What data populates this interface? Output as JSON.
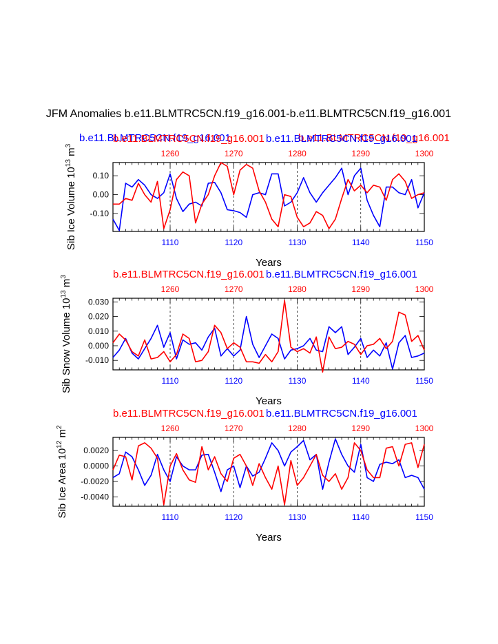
{
  "page": {
    "title": "JFM Anomalies b.e11.BLMTRC5CN.f19_g16.001-b.e11.BLMTRC5CN.f19_g16.001",
    "colors": {
      "series_a": "#ff0000",
      "series_b": "#0000ff",
      "axis": "#000000"
    }
  },
  "chart_data": [
    {
      "type": "line",
      "ylabel": "Sib Ice Volume 10^13 m^3",
      "ylabel_main": "Sib Ice Volume 10",
      "ylabel_exp": "13",
      "ylabel_unit": "m",
      "ylabel_unit_exp": "3",
      "xlabel": "Years",
      "top_label_red": "b.e11.BLMTRC5CN.f19_g16.001",
      "top_label_blue": "b.e11.BLMTRC5CN.f19_g16.001",
      "header_extra_blue": "b.e11.BLMTRC5CN.f19_g16.001",
      "header_extra_red": "b.e11.BLMTRC5CN.f19_g16.001",
      "ylim": [
        -0.195,
        0.17
      ],
      "yticks": [
        0.1,
        0.0,
        -0.1
      ],
      "ytick_labels": [
        "0.10",
        "0.00",
        "-0.10"
      ],
      "bottom_axis": {
        "range": [
          1101,
          1150
        ],
        "ticks": [
          1110,
          1120,
          1130,
          1140,
          1150
        ],
        "color": "#0000ff"
      },
      "top_axis": {
        "range": [
          1251,
          1300
        ],
        "ticks": [
          1260,
          1270,
          1280,
          1290,
          1300
        ],
        "color": "#ff0000"
      },
      "series": [
        {
          "name": "b.e11.BLMTRC5CN.f19_g16.001",
          "color": "#0000ff",
          "values": [
            -0.13,
            -0.19,
            0.06,
            0.04,
            0.08,
            0.05,
            0.0,
            -0.02,
            0.01,
            0.11,
            -0.02,
            -0.09,
            -0.05,
            -0.04,
            -0.06,
            0.06,
            0.065,
            0.01,
            -0.08,
            -0.085,
            -0.095,
            -0.12,
            0.0,
            0.01,
            0.0,
            0.11,
            0.11,
            -0.06,
            -0.04,
            0.01,
            0.09,
            0.01,
            -0.04,
            0.01,
            0.05,
            0.09,
            0.14,
            0.0,
            0.1,
            0.14,
            -0.03,
            -0.11,
            -0.17,
            0.04,
            0.04,
            0.01,
            0.0,
            0.08,
            -0.07,
            0.01
          ]
        },
        {
          "name": "b.e11.BLMTRC5CN.f19_g16.001",
          "color": "#ff0000",
          "values": [
            -0.05,
            -0.05,
            -0.02,
            -0.03,
            0.06,
            0.0,
            -0.04,
            0.07,
            -0.18,
            -0.08,
            0.08,
            0.12,
            0.1,
            -0.15,
            -0.05,
            0.0,
            0.1,
            0.17,
            0.15,
            0.0,
            0.13,
            0.16,
            0.14,
            0.02,
            -0.04,
            -0.13,
            -0.17,
            0.0,
            -0.01,
            -0.12,
            -0.17,
            -0.15,
            -0.09,
            -0.11,
            -0.18,
            -0.13,
            -0.02,
            0.08,
            0.02,
            0.05,
            0.01,
            0.05,
            0.04,
            -0.03,
            0.08,
            0.11,
            0.07,
            -0.02,
            0.0,
            0.01
          ]
        }
      ]
    },
    {
      "type": "line",
      "ylabel": "Sib Snow Volume 10^13 m^3",
      "ylabel_main": "Sib Snow Volume 10",
      "ylabel_exp": "13",
      "ylabel_unit": "m",
      "ylabel_unit_exp": "3",
      "xlabel": "Years",
      "top_label_red": "b.e11.BLMTRC5CN.f19_g16.001",
      "top_label_blue": "b.e11.BLMTRC5CN.f19_g16.001",
      "ylim": [
        -0.0165,
        0.0325
      ],
      "yticks": [
        0.03,
        0.02,
        0.01,
        0.0,
        -0.01
      ],
      "ytick_labels": [
        "0.030",
        "0.020",
        "0.010",
        "0.000",
        "-0.010"
      ],
      "bottom_axis": {
        "range": [
          1101,
          1150
        ],
        "ticks": [
          1110,
          1120,
          1130,
          1140,
          1150
        ],
        "color": "#0000ff"
      },
      "top_axis": {
        "range": [
          1251,
          1300
        ],
        "ticks": [
          1260,
          1270,
          1280,
          1290,
          1300
        ],
        "color": "#ff0000"
      },
      "series": [
        {
          "name": "b.e11.BLMTRC5CN.f19_g16.001",
          "color": "#0000ff",
          "values": [
            -0.008,
            -0.003,
            0.005,
            -0.005,
            -0.009,
            -0.002,
            0.005,
            0.014,
            -0.001,
            0.009,
            -0.009,
            0.004,
            0.001,
            0.002,
            -0.003,
            0.006,
            0.012,
            -0.007,
            -0.002,
            -0.007,
            -0.003,
            0.02,
            0.001,
            -0.008,
            0.0,
            0.008,
            0.005,
            -0.009,
            -0.003,
            -0.002,
            0.0,
            0.005,
            -0.003,
            -0.004,
            0.013,
            0.009,
            0.013,
            -0.006,
            -0.001,
            0.005,
            -0.008,
            -0.003,
            -0.007,
            0.002,
            -0.016,
            0.002,
            0.007,
            -0.008,
            -0.007,
            -0.005
          ]
        },
        {
          "name": "b.e11.BLMTRC5CN.f19_g16.001",
          "color": "#ff0000",
          "values": [
            0.002,
            0.008,
            0.004,
            -0.004,
            -0.007,
            0.004,
            -0.009,
            -0.008,
            -0.004,
            -0.011,
            -0.006,
            0.008,
            0.005,
            -0.011,
            -0.01,
            -0.004,
            0.014,
            0.009,
            -0.002,
            0.002,
            -0.001,
            -0.011,
            -0.011,
            -0.012,
            -0.006,
            -0.011,
            -0.004,
            0.031,
            -0.001,
            -0.004,
            -0.002,
            -0.005,
            0.006,
            -0.018,
            0.006,
            -0.002,
            -0.001,
            0.003,
            0.001,
            -0.006,
            0.0,
            0.001,
            0.005,
            -0.002,
            0.003,
            0.023,
            0.021,
            0.003,
            0.007,
            -0.003
          ]
        }
      ]
    },
    {
      "type": "line",
      "ylabel": "Sib Ice Area 10^12 m^2",
      "ylabel_main": "Sib Ice Area 10",
      "ylabel_exp": "12",
      "ylabel_unit": "m",
      "ylabel_unit_exp": "2",
      "xlabel": "Years",
      "top_label_red": "b.e11.BLMTRC5CN.f19_g16.001",
      "top_label_blue": "b.e11.BLMTRC5CN.f19_g16.001",
      "ylim": [
        -0.0052,
        0.0037
      ],
      "yticks": [
        0.002,
        0.0,
        -0.002,
        -0.004
      ],
      "ytick_labels": [
        "0.0020",
        "0.0000",
        "-0.0020",
        "-0.0040"
      ],
      "bottom_axis": {
        "range": [
          1101,
          1150
        ],
        "ticks": [
          1110,
          1120,
          1130,
          1140,
          1150
        ],
        "color": "#0000ff"
      },
      "top_axis": {
        "range": [
          1251,
          1300
        ],
        "ticks": [
          1260,
          1270,
          1280,
          1290,
          1300
        ],
        "color": "#ff0000"
      },
      "series": [
        {
          "name": "b.e11.BLMTRC5CN.f19_g16.001",
          "color": "#0000ff",
          "values": [
            -0.0015,
            -0.001,
            0.0018,
            0.0012,
            -0.0005,
            -0.0025,
            -0.0012,
            0.0015,
            -0.0005,
            -0.002,
            0.0012,
            0.0,
            -0.0005,
            -0.0005,
            0.0014,
            0.0015,
            -0.0008,
            -0.0033,
            -0.0005,
            0.0,
            -0.0028,
            0.0,
            -0.0013,
            -0.0008,
            0.001,
            0.003,
            0.002,
            0.0,
            0.0018,
            0.0025,
            0.0033,
            0.0008,
            0.0015,
            -0.003,
            0.0005,
            0.0035,
            0.0015,
            0.0,
            -0.0008,
            0.0028,
            -0.0015,
            -0.002,
            0.0002,
            0.0005,
            0.0003,
            0.0008,
            -0.0015,
            -0.0012,
            -0.0015,
            -0.003
          ]
        },
        {
          "name": "b.e11.BLMTRC5CN.f19_g16.001",
          "color": "#ff0000",
          "values": [
            -0.0005,
            0.0014,
            0.0012,
            -0.0018,
            0.0026,
            0.003,
            0.0023,
            0.001,
            -0.005,
            0.0,
            0.0016,
            -0.0005,
            -0.0018,
            -0.0021,
            0.0025,
            -0.0005,
            0.0012,
            -0.001,
            -0.002,
            0.001,
            0.0015,
            0.0,
            -0.0025,
            0.0003,
            -0.0015,
            -0.003,
            0.0,
            -0.005,
            0.0007,
            -0.0025,
            -0.0015,
            0.0,
            0.0015,
            -0.0012,
            -0.002,
            -0.001,
            -0.003,
            -0.0015,
            0.003,
            0.002,
            -0.0005,
            -0.0015,
            -0.0015,
            0.0023,
            0.0025,
            0.0,
            0.0028,
            0.003,
            -0.0002,
            0.0028
          ]
        }
      ]
    }
  ]
}
